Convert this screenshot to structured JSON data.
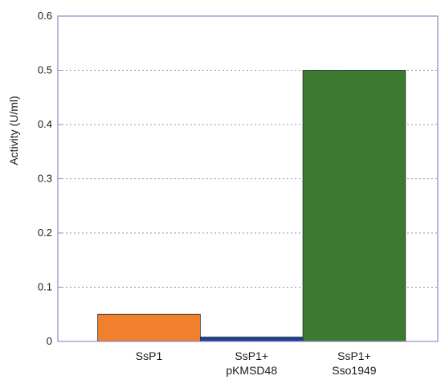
{
  "chart_data": {
    "type": "bar",
    "title": "",
    "xlabel": "",
    "ylabel": "Activity (U/ml)",
    "ylim": [
      0,
      0.6
    ],
    "yticks": [
      0,
      0.1,
      0.2,
      0.3,
      0.4,
      0.5,
      0.6
    ],
    "ytick_labels": [
      "0",
      "0.1",
      "0.2",
      "0.3",
      "0.4",
      "0.5",
      "0.6"
    ],
    "grid": true,
    "categories": [
      {
        "lines": [
          "SsP1"
        ]
      },
      {
        "lines": [
          "SsP1+",
          "pKMSD48"
        ]
      },
      {
        "lines": [
          "SsP1+",
          "Sso1949"
        ]
      }
    ],
    "values": [
      0.05,
      0.008,
      0.5
    ],
    "colors": [
      "#F07F2E",
      "#1F3E91",
      "#3C7A2F"
    ],
    "frame_color": "#8C8CC8",
    "grid_color": "#8C8CC8"
  }
}
